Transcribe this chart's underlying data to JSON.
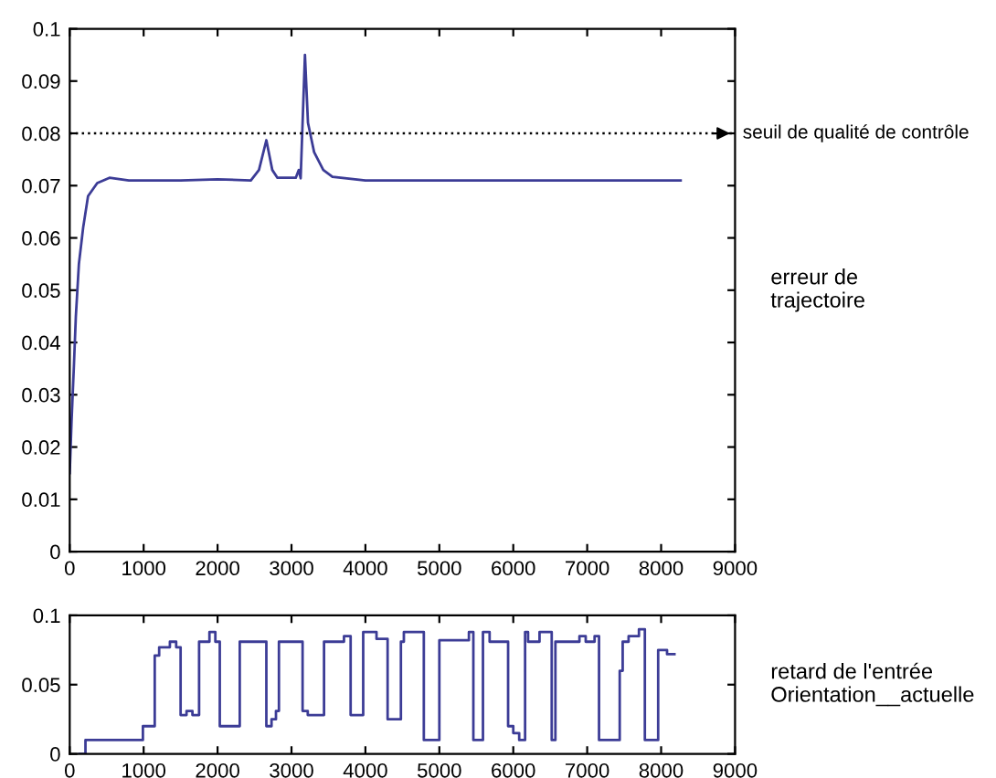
{
  "chart_data": [
    {
      "type": "line",
      "ylabel": "erreur de\ntrajectoire",
      "xlim": [
        0,
        9000
      ],
      "ylim": [
        0,
        0.1
      ],
      "xticks": [
        0,
        1000,
        2000,
        3000,
        4000,
        5000,
        6000,
        7000,
        8000,
        9000
      ],
      "yticks": [
        0,
        0.01,
        0.02,
        0.03,
        0.04,
        0.05,
        0.06,
        0.07,
        0.08,
        0.09,
        0.1
      ],
      "series": [
        {
          "color": "#3c3c96",
          "x": [
            0,
            25,
            58,
            83,
            124,
            182,
            248,
            372,
            537,
            800,
            1116,
            1500,
            2000,
            2450,
            2560,
            2660,
            2740,
            2810,
            3058,
            3099,
            3124,
            3182,
            3223,
            3306,
            3430,
            3554,
            4000,
            5000,
            6000,
            7000,
            8000,
            8264
          ],
          "values": [
            0.015,
            0.025,
            0.036,
            0.045,
            0.055,
            0.062,
            0.068,
            0.0705,
            0.0715,
            0.071,
            0.071,
            0.071,
            0.0712,
            0.071,
            0.073,
            0.0787,
            0.073,
            0.0715,
            0.0715,
            0.073,
            0.0714,
            0.095,
            0.082,
            0.0764,
            0.073,
            0.0717,
            0.071,
            0.071,
            0.071,
            0.071,
            0.071,
            0.071
          ]
        }
      ],
      "ref_lines": [
        {
          "axis": "y",
          "value": 0.08,
          "label": "seuil de qualité de contrôle",
          "color": "#000000",
          "line_style": "dotted"
        }
      ],
      "grid": false,
      "legend": false
    },
    {
      "type": "step",
      "ylabel": "retard de l'entrée\nOrientation__actuelle",
      "xlim": [
        0,
        9000
      ],
      "ylim": [
        0,
        0.1
      ],
      "xticks": [
        0,
        1000,
        2000,
        3000,
        4000,
        5000,
        6000,
        7000,
        8000,
        9000
      ],
      "yticks": [
        0,
        0.05,
        0.1
      ],
      "series": [
        {
          "color": "#3c3c96",
          "x": [
            130,
            213,
            990,
            1150,
            1210,
            1355,
            1440,
            1500,
            1580,
            1660,
            1750,
            1890,
            1970,
            2030,
            2300,
            2660,
            2730,
            2790,
            2830,
            3150,
            3220,
            3440,
            3710,
            3800,
            3970,
            4150,
            4300,
            4480,
            4520,
            4790,
            5000,
            5400,
            5460,
            5590,
            5680,
            5930,
            6000,
            6080,
            6160,
            6200,
            6355,
            6520,
            6570,
            6895,
            6980,
            7100,
            7160,
            7440,
            7480,
            7560,
            7700,
            7780,
            7960,
            8080,
            8180
          ],
          "values": [
            0,
            0.01,
            0.02,
            0.071,
            0.077,
            0.081,
            0.077,
            0.028,
            0.031,
            0.028,
            0.081,
            0.088,
            0.081,
            0.02,
            0.081,
            0.02,
            0.025,
            0.031,
            0.081,
            0.031,
            0.028,
            0.081,
            0.085,
            0.028,
            0.088,
            0.083,
            0.025,
            0.081,
            0.088,
            0.01,
            0.082,
            0.088,
            0.01,
            0.088,
            0.081,
            0.02,
            0.015,
            0.01,
            0.088,
            0.081,
            0.088,
            0.01,
            0.081,
            0.085,
            0.081,
            0.085,
            0.01,
            0.06,
            0.081,
            0.085,
            0.09,
            0.01,
            0.075,
            0.072,
            0.072
          ]
        }
      ],
      "grid": false,
      "legend": false
    }
  ]
}
